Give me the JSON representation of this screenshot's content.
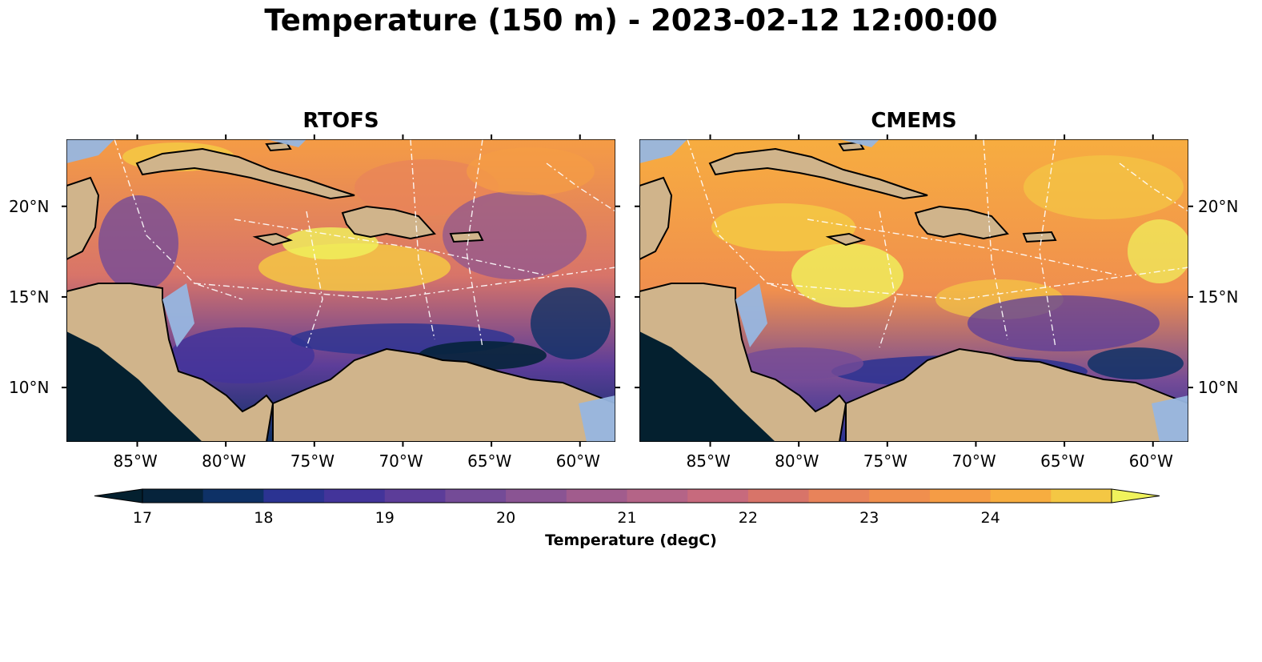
{
  "figure": {
    "title": "Temperature (150 m) - 2023-02-12 12:00:00"
  },
  "panels": [
    {
      "title": "RTOFS",
      "model": "RTOFS"
    },
    {
      "title": "CMEMS",
      "model": "CMEMS"
    }
  ],
  "axes": {
    "lon_range": [
      -89,
      -58
    ],
    "lat_range": [
      7,
      23.7
    ],
    "lon_ticks": [
      {
        "value": -85,
        "label": "85°W"
      },
      {
        "value": -80,
        "label": "80°W"
      },
      {
        "value": -75,
        "label": "75°W"
      },
      {
        "value": -70,
        "label": "70°W"
      },
      {
        "value": -65,
        "label": "65°W"
      },
      {
        "value": -60,
        "label": "60°W"
      }
    ],
    "lat_ticks": [
      {
        "value": 20,
        "label": "20°N"
      },
      {
        "value": 15,
        "label": "15°N"
      },
      {
        "value": 10,
        "label": "10°N"
      }
    ]
  },
  "colorbar": {
    "label": "Temperature (degC)",
    "range": [
      17,
      25
    ],
    "extend": "both",
    "ticks": [
      {
        "value": 17,
        "label": "17"
      },
      {
        "value": 18,
        "label": "18"
      },
      {
        "value": 19,
        "label": "19"
      },
      {
        "value": 20,
        "label": "20"
      },
      {
        "value": 21,
        "label": "21"
      },
      {
        "value": 22,
        "label": "22"
      },
      {
        "value": 23,
        "label": "23"
      },
      {
        "value": 24,
        "label": "24"
      }
    ],
    "colors": [
      "#06233b",
      "#0e3166",
      "#2b3392",
      "#43349a",
      "#5c3d99",
      "#744b97",
      "#8a5493",
      "#a15c8d",
      "#b46487",
      "#c76a7d",
      "#d87469",
      "#e8835a",
      "#f08f4e",
      "#f59c45",
      "#f7ad40",
      "#f4c744"
    ],
    "extend_low_color": "#04202f",
    "extend_high_color": "#f0f35c"
  },
  "colors": {
    "land": "#d0b48b",
    "shelf_water": "#97b6e0",
    "coast": "#000000",
    "eez_lines": "#ffffff",
    "rivers": "#a9bbd4"
  }
}
